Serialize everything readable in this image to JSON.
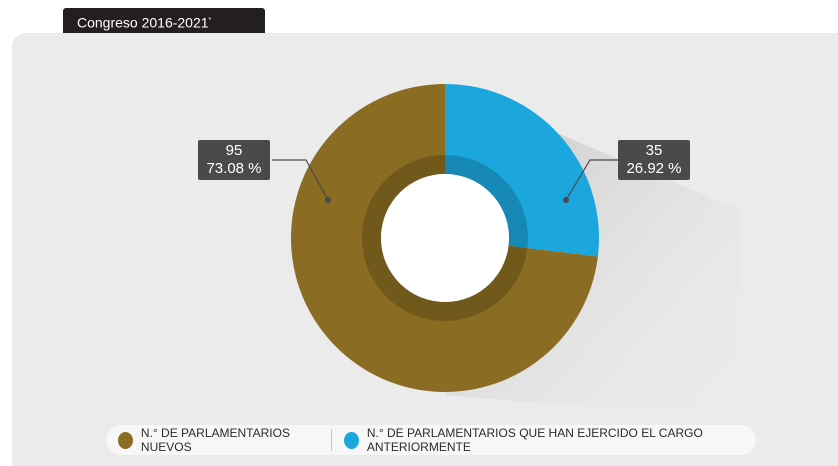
{
  "header": {
    "title": "Congreso 2016-2021",
    "title_mark": "*"
  },
  "chart_data": {
    "type": "pie",
    "style": "donut",
    "series": [
      {
        "name": "N.° DE PARLAMENTARIOS NUEVOS",
        "value": 95,
        "percent_label": "73.08 %",
        "color": "#8a6c22"
      },
      {
        "name": "N.° DE PARLAMENTARIOS QUE HAN EJERCIDO EL CARGO ANTERIORMENTE",
        "value": 35,
        "percent_label": "26.92 %",
        "color": "#1ba7dd"
      }
    ],
    "labels": {
      "nuevos_value": "95",
      "nuevos_percent": "73.08 %",
      "anteriores_value": "35",
      "anteriores_percent": "26.92 %"
    },
    "legend_position": "bottom"
  },
  "legend": {
    "item1": "N.° DE PARLAMENTARIOS NUEVOS",
    "item2": "N.° DE PARLAMENTARIOS QUE HAN EJERCIDO EL CARGO ANTERIORMENTE"
  }
}
